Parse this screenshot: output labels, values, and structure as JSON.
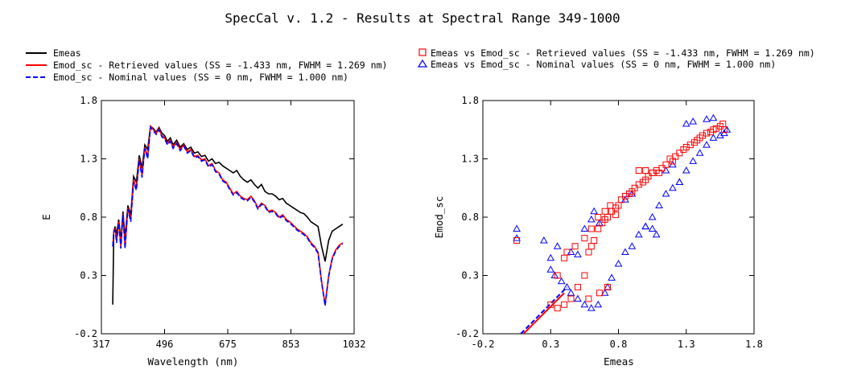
{
  "title": "SpecCal v. 1.2 - Results at Spectral Range 349-1000",
  "colors": {
    "emeas": "#000000",
    "retrieved": "#ff0000",
    "nominal": "#0000ff"
  },
  "legend_left": [
    {
      "label": "Emeas",
      "style": "solid-black"
    },
    {
      "label": "Emod_sc - Retrieved values (SS = -1.433 nm, FWHM =  1.269 nm)",
      "style": "solid-red"
    },
    {
      "label": "Emod_sc - Nominal values (SS = 0 nm, FWHM =  1.000 nm)",
      "style": "dashed-blue"
    }
  ],
  "legend_right": [
    {
      "label": "Emeas vs Emod_sc - Retrieved values (SS = -1.433 nm, FWHM =  1.269 nm)",
      "marker": "square-red"
    },
    {
      "label": "Emeas vs Emod_sc - Nominal values (SS = 0 nm, FWHM =  1.000 nm)",
      "marker": "triangle-blue"
    }
  ],
  "chart_data": [
    {
      "type": "line",
      "xlabel": "Wavelength (nm)",
      "ylabel": "E",
      "xlim": [
        317,
        1032
      ],
      "ylim": [
        -0.2,
        1.8
      ],
      "xticks": [
        "317",
        "496",
        "675",
        "853",
        "1032"
      ],
      "yticks": [
        "-0.2",
        "0.3",
        "0.8",
        "1.3",
        "1.8"
      ],
      "series": [
        {
          "name": "Emeas",
          "x": [
            349,
            352,
            356,
            360,
            366,
            372,
            378,
            384,
            392,
            400,
            408,
            416,
            424,
            432,
            440,
            448,
            456,
            464,
            472,
            480,
            488,
            496,
            504,
            512,
            520,
            530,
            540,
            550,
            560,
            570,
            580,
            590,
            600,
            610,
            620,
            630,
            640,
            650,
            660,
            670,
            680,
            690,
            700,
            710,
            720,
            730,
            740,
            750,
            760,
            770,
            780,
            790,
            800,
            810,
            820,
            830,
            840,
            850,
            860,
            870,
            880,
            890,
            900,
            910,
            920,
            930,
            940,
            950,
            960,
            970,
            980,
            990,
            1000
          ],
          "y": [
            0.05,
            0.68,
            0.72,
            0.65,
            0.78,
            0.6,
            0.85,
            0.62,
            0.9,
            0.82,
            1.15,
            1.1,
            1.33,
            1.22,
            1.42,
            1.38,
            1.58,
            1.56,
            1.53,
            1.57,
            1.52,
            1.5,
            1.45,
            1.48,
            1.42,
            1.46,
            1.4,
            1.43,
            1.38,
            1.4,
            1.35,
            1.36,
            1.32,
            1.33,
            1.28,
            1.3,
            1.26,
            1.27,
            1.24,
            1.22,
            1.2,
            1.18,
            1.2,
            1.15,
            1.12,
            1.1,
            1.12,
            1.08,
            1.05,
            1.08,
            1.02,
            1.0,
            1.0,
            0.98,
            0.95,
            0.96,
            0.92,
            0.9,
            0.88,
            0.86,
            0.84,
            0.83,
            0.8,
            0.76,
            0.74,
            0.72,
            0.55,
            0.42,
            0.6,
            0.68,
            0.7,
            0.72,
            0.74
          ]
        },
        {
          "name": "Emod_sc - Retrieved values (SS = -1.433 nm, FWHM =  1.269 nm)",
          "x": [
            349,
            352,
            356,
            360,
            366,
            372,
            378,
            384,
            392,
            400,
            408,
            416,
            424,
            432,
            440,
            448,
            456,
            464,
            472,
            480,
            488,
            496,
            504,
            512,
            520,
            530,
            540,
            550,
            560,
            570,
            580,
            590,
            600,
            610,
            620,
            630,
            640,
            650,
            660,
            670,
            680,
            690,
            700,
            710,
            720,
            730,
            740,
            750,
            760,
            770,
            780,
            790,
            800,
            810,
            820,
            830,
            840,
            850,
            860,
            870,
            880,
            890,
            900,
            910,
            920,
            930,
            940,
            950,
            960,
            970,
            980,
            990,
            1000
          ],
          "y": [
            0.55,
            0.68,
            0.7,
            0.6,
            0.76,
            0.55,
            0.83,
            0.55,
            0.88,
            0.78,
            1.12,
            1.05,
            1.3,
            1.16,
            1.4,
            1.32,
            1.58,
            1.55,
            1.52,
            1.56,
            1.5,
            1.48,
            1.43,
            1.46,
            1.4,
            1.44,
            1.38,
            1.42,
            1.36,
            1.38,
            1.32,
            1.33,
            1.29,
            1.3,
            1.24,
            1.26,
            1.2,
            1.18,
            1.12,
            1.1,
            1.05,
            1.0,
            1.02,
            0.98,
            0.96,
            0.95,
            0.98,
            0.94,
            0.88,
            0.92,
            0.9,
            0.85,
            0.86,
            0.84,
            0.8,
            0.82,
            0.78,
            0.76,
            0.73,
            0.7,
            0.68,
            0.66,
            0.63,
            0.58,
            0.55,
            0.5,
            0.25,
            0.05,
            0.3,
            0.45,
            0.52,
            0.56,
            0.58
          ]
        },
        {
          "name": "Emod_sc - Nominal values (SS = 0 nm, FWHM =  1.000 nm)",
          "x": [
            349,
            352,
            356,
            360,
            366,
            372,
            378,
            384,
            392,
            400,
            408,
            416,
            424,
            432,
            440,
            448,
            456,
            464,
            472,
            480,
            488,
            496,
            504,
            512,
            520,
            530,
            540,
            550,
            560,
            570,
            580,
            590,
            600,
            610,
            620,
            630,
            640,
            650,
            660,
            670,
            680,
            690,
            700,
            710,
            720,
            730,
            740,
            750,
            760,
            770,
            780,
            790,
            800,
            810,
            820,
            830,
            840,
            850,
            860,
            870,
            880,
            890,
            900,
            910,
            920,
            930,
            940,
            950,
            960,
            970,
            980,
            990,
            1000
          ],
          "y": [
            0.55,
            0.67,
            0.69,
            0.58,
            0.75,
            0.53,
            0.82,
            0.53,
            0.87,
            0.76,
            1.1,
            1.03,
            1.29,
            1.14,
            1.39,
            1.3,
            1.57,
            1.54,
            1.51,
            1.55,
            1.49,
            1.47,
            1.42,
            1.45,
            1.39,
            1.43,
            1.37,
            1.41,
            1.35,
            1.37,
            1.31,
            1.32,
            1.28,
            1.29,
            1.23,
            1.25,
            1.19,
            1.17,
            1.11,
            1.09,
            1.04,
            0.99,
            1.01,
            0.97,
            0.95,
            0.94,
            0.97,
            0.93,
            0.87,
            0.91,
            0.89,
            0.84,
            0.85,
            0.83,
            0.79,
            0.81,
            0.77,
            0.75,
            0.72,
            0.69,
            0.67,
            0.65,
            0.62,
            0.57,
            0.54,
            0.49,
            0.24,
            0.04,
            0.29,
            0.44,
            0.51,
            0.55,
            0.57
          ]
        }
      ]
    },
    {
      "type": "scatter",
      "xlabel": "Emeas",
      "ylabel": "Emod_sc",
      "xlim": [
        -0.2,
        1.8
      ],
      "ylim": [
        -0.2,
        1.8
      ],
      "xticks": [
        "-0.2",
        "0.3",
        "0.8",
        "1.3",
        "1.8"
      ],
      "yticks": [
        "-0.2",
        "0.3",
        "0.8",
        "1.3",
        "1.8"
      ],
      "series": [
        {
          "name": "Emeas vs Emod_sc - Retrieved values (SS = -1.433 nm, FWHM =  1.269 nm)",
          "marker": "square",
          "x": [
            0.05,
            0.3,
            0.35,
            0.4,
            0.45,
            0.5,
            0.55,
            0.58,
            0.6,
            0.62,
            0.65,
            0.68,
            0.7,
            0.72,
            0.75,
            0.78,
            0.8,
            0.82,
            0.85,
            0.88,
            0.9,
            0.92,
            0.95,
            0.98,
            1.0,
            1.02,
            1.05,
            1.08,
            1.1,
            1.12,
            1.15,
            1.18,
            1.2,
            1.22,
            1.25,
            1.28,
            1.3,
            1.33,
            1.36,
            1.38,
            1.4,
            1.42,
            1.45,
            1.48,
            1.5,
            1.52,
            1.55,
            1.57,
            1.58,
            0.42,
            0.48,
            0.55,
            0.6,
            0.65,
            0.7,
            0.74,
            0.78,
            0.58,
            0.66,
            0.72,
            0.95,
            1.0,
            1.05,
            0.35,
            0.4
          ],
          "y": [
            0.6,
            0.05,
            0.02,
            0.05,
            0.1,
            0.2,
            0.3,
            0.5,
            0.55,
            0.6,
            0.7,
            0.75,
            0.78,
            0.8,
            0.85,
            0.88,
            0.9,
            0.95,
            0.98,
            1.0,
            1.02,
            1.05,
            1.08,
            1.1,
            1.12,
            1.15,
            1.18,
            1.2,
            1.18,
            1.22,
            1.25,
            1.3,
            1.28,
            1.32,
            1.35,
            1.38,
            1.4,
            1.42,
            1.44,
            1.46,
            1.48,
            1.5,
            1.52,
            1.53,
            1.55,
            1.56,
            1.58,
            1.6,
            1.55,
            0.5,
            0.55,
            0.62,
            0.7,
            0.8,
            0.85,
            0.9,
            0.82,
            0.1,
            0.15,
            0.2,
            1.2,
            1.2,
            1.18,
            0.3,
            0.45
          ]
        },
        {
          "name": "Emeas vs Emod_sc - Nominal values (SS = 0 nm, FWHM =  1.000 nm)",
          "marker": "triangle",
          "x": [
            0.05,
            0.05,
            0.25,
            0.3,
            0.33,
            0.38,
            0.42,
            0.45,
            0.5,
            0.55,
            0.6,
            0.65,
            0.7,
            0.72,
            0.75,
            0.8,
            0.85,
            0.9,
            0.95,
            1.0,
            1.05,
            1.1,
            1.15,
            1.2,
            1.25,
            1.3,
            1.35,
            1.4,
            1.45,
            1.5,
            1.55,
            1.58,
            1.6,
            1.3,
            1.35,
            1.45,
            1.5,
            0.55,
            0.6,
            0.62,
            0.66,
            0.85,
            0.9,
            1.0,
            1.05,
            1.08,
            0.35,
            0.45,
            0.5,
            1.15,
            1.2,
            1.25,
            0.3
          ],
          "y": [
            0.7,
            0.62,
            0.6,
            0.35,
            0.3,
            0.25,
            0.2,
            0.15,
            0.1,
            0.05,
            0.02,
            0.05,
            0.15,
            0.2,
            0.28,
            0.4,
            0.5,
            0.55,
            0.65,
            0.72,
            0.8,
            0.9,
            1.0,
            1.05,
            1.1,
            1.2,
            1.28,
            1.35,
            1.42,
            1.48,
            1.5,
            1.52,
            1.55,
            1.6,
            1.62,
            1.64,
            1.65,
            0.7,
            0.78,
            0.85,
            0.75,
            0.95,
            1.0,
            0.72,
            0.7,
            0.65,
            0.55,
            0.5,
            0.48,
            1.2,
            1.25,
            1.1,
            0.45
          ]
        }
      ]
    }
  ]
}
